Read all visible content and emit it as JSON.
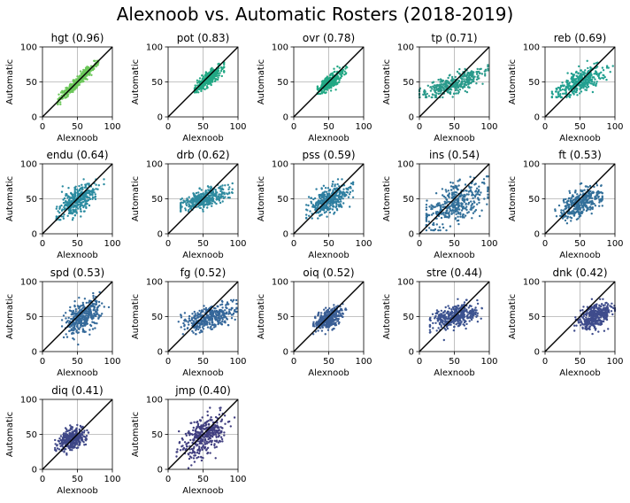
{
  "figure_title": "Alexnoob vs. Automatic Rosters (2018-2019)",
  "shared": {
    "xlabel": "Alexnoob",
    "ylabel": "Automatic",
    "xlim": [
      0,
      100
    ],
    "ylim": [
      0,
      100
    ],
    "ticks": [
      "0",
      "50",
      "100"
    ],
    "grid": true,
    "reference_line": "y = x",
    "layout": "4 rows x 5 columns"
  },
  "chart_data": [
    {
      "type": "scatter",
      "title": "hgt (0.96)",
      "color": "#6cc75a",
      "xlabel": "Alexnoob",
      "ylabel": "Automatic",
      "xlim": [
        0,
        100
      ],
      "ylim": [
        0,
        100
      ],
      "spread": {
        "x_mean": 50,
        "x_sd": 14,
        "x_range": [
          22,
          80
        ],
        "y_mean": 50,
        "y_sd": 14,
        "y_range": [
          18,
          80
        ],
        "correlation": 0.96
      }
    },
    {
      "type": "scatter",
      "title": "pot (0.83)",
      "color": "#22a884",
      "xlabel": "Alexnoob",
      "ylabel": "Automatic",
      "xlim": [
        0,
        100
      ],
      "ylim": [
        0,
        100
      ],
      "spread": {
        "x_mean": 58,
        "x_sd": 10,
        "x_range": [
          38,
          80
        ],
        "y_mean": 55,
        "y_sd": 9,
        "y_range": [
          35,
          78
        ],
        "correlation": 0.83
      }
    },
    {
      "type": "scatter",
      "title": "ovr (0.78)",
      "color": "#22a884",
      "xlabel": "Alexnoob",
      "ylabel": "Automatic",
      "xlim": [
        0,
        100
      ],
      "ylim": [
        0,
        100
      ],
      "spread": {
        "x_mean": 52,
        "x_sd": 9,
        "x_range": [
          34,
          78
        ],
        "y_mean": 50,
        "y_sd": 8,
        "y_range": [
          33,
          72
        ],
        "correlation": 0.78
      }
    },
    {
      "type": "scatter",
      "title": "tp (0.71)",
      "color": "#2a9a8b",
      "xlabel": "Alexnoob",
      "ylabel": "Automatic",
      "xlim": [
        0,
        100
      ],
      "ylim": [
        0,
        100
      ],
      "spread": {
        "x_mean": 50,
        "x_sd": 22,
        "x_range": [
          0,
          98
        ],
        "y_mean": 48,
        "y_sd": 10,
        "y_range": [
          28,
          75
        ],
        "correlation": 0.71
      }
    },
    {
      "type": "scatter",
      "title": "reb (0.69)",
      "color": "#22a090",
      "xlabel": "Alexnoob",
      "ylabel": "Automatic",
      "xlim": [
        0,
        100
      ],
      "ylim": [
        0,
        100
      ],
      "spread": {
        "x_mean": 50,
        "x_sd": 18,
        "x_range": [
          10,
          98
        ],
        "y_mean": 50,
        "y_sd": 11,
        "y_range": [
          28,
          80
        ],
        "correlation": 0.69
      }
    },
    {
      "type": "scatter",
      "title": "endu (0.64)",
      "color": "#2b8ba0",
      "xlabel": "Alexnoob",
      "ylabel": "Automatic",
      "xlim": [
        0,
        100
      ],
      "ylim": [
        0,
        100
      ],
      "spread": {
        "x_mean": 50,
        "x_sd": 14,
        "x_range": [
          20,
          88
        ],
        "y_mean": 48,
        "y_sd": 12,
        "y_range": [
          20,
          78
        ],
        "correlation": 0.64
      }
    },
    {
      "type": "scatter",
      "title": "drb (0.62)",
      "color": "#2e8a9f",
      "xlabel": "Alexnoob",
      "ylabel": "Automatic",
      "xlim": [
        0,
        100
      ],
      "ylim": [
        0,
        100
      ],
      "spread": {
        "x_mean": 52,
        "x_sd": 17,
        "x_range": [
          18,
          92
        ],
        "y_mean": 50,
        "y_sd": 8,
        "y_range": [
          32,
          72
        ],
        "correlation": 0.62
      }
    },
    {
      "type": "scatter",
      "title": "pss (0.59)",
      "color": "#2e7ea0",
      "xlabel": "Alexnoob",
      "ylabel": "Automatic",
      "xlim": [
        0,
        100
      ],
      "ylim": [
        0,
        100
      ],
      "spread": {
        "x_mean": 50,
        "x_sd": 15,
        "x_range": [
          18,
          85
        ],
        "y_mean": 48,
        "y_sd": 11,
        "y_range": [
          22,
          78
        ],
        "correlation": 0.59
      }
    },
    {
      "type": "scatter",
      "title": "ins (0.54)",
      "color": "#33709a",
      "xlabel": "Alexnoob",
      "ylabel": "Automatic",
      "xlim": [
        0,
        100
      ],
      "ylim": [
        0,
        100
      ],
      "spread": {
        "x_mean": 52,
        "x_sd": 22,
        "x_range": [
          10,
          98
        ],
        "y_mean": 42,
        "y_sd": 17,
        "y_range": [
          5,
          82
        ],
        "correlation": 0.54
      }
    },
    {
      "type": "scatter",
      "title": "ft (0.53)",
      "color": "#33709a",
      "xlabel": "Alexnoob",
      "ylabel": "Automatic",
      "xlim": [
        0,
        100
      ],
      "ylim": [
        0,
        100
      ],
      "spread": {
        "x_mean": 52,
        "x_sd": 15,
        "x_range": [
          10,
          82
        ],
        "y_mean": 45,
        "y_sd": 11,
        "y_range": [
          15,
          72
        ],
        "correlation": 0.53
      }
    },
    {
      "type": "scatter",
      "title": "spd (0.53)",
      "color": "#356a9a",
      "xlabel": "Alexnoob",
      "ylabel": "Automatic",
      "xlim": [
        0,
        100
      ],
      "ylim": [
        0,
        100
      ],
      "spread": {
        "x_mean": 58,
        "x_sd": 12,
        "x_range": [
          28,
          95
        ],
        "y_mean": 50,
        "y_sd": 12,
        "y_range": [
          10,
          85
        ],
        "correlation": 0.53
      }
    },
    {
      "type": "scatter",
      "title": "fg (0.52)",
      "color": "#35679a",
      "xlabel": "Alexnoob",
      "ylabel": "Automatic",
      "xlim": [
        0,
        100
      ],
      "ylim": [
        0,
        100
      ],
      "spread": {
        "x_mean": 58,
        "x_sd": 18,
        "x_range": [
          15,
          98
        ],
        "y_mean": 48,
        "y_sd": 10,
        "y_range": [
          25,
          85
        ],
        "correlation": 0.52
      }
    },
    {
      "type": "scatter",
      "title": "oiq (0.52)",
      "color": "#3a5e95",
      "xlabel": "Alexnoob",
      "ylabel": "Automatic",
      "xlim": [
        0,
        100
      ],
      "ylim": [
        0,
        100
      ],
      "spread": {
        "x_mean": 50,
        "x_sd": 10,
        "x_range": [
          28,
          75
        ],
        "y_mean": 47,
        "y_sd": 8,
        "y_range": [
          25,
          68
        ],
        "correlation": 0.52
      }
    },
    {
      "type": "scatter",
      "title": "stre (0.44)",
      "color": "#3c5390",
      "xlabel": "Alexnoob",
      "ylabel": "Automatic",
      "xlim": [
        0,
        100
      ],
      "ylim": [
        0,
        100
      ],
      "spread": {
        "x_mean": 50,
        "x_sd": 18,
        "x_range": [
          15,
          95
        ],
        "y_mean": 50,
        "y_sd": 9,
        "y_range": [
          12,
          75
        ],
        "correlation": 0.44
      }
    },
    {
      "type": "scatter",
      "title": "dnk (0.42)",
      "color": "#3f4c8c",
      "xlabel": "Alexnoob",
      "ylabel": "Automatic",
      "xlim": [
        0,
        100
      ],
      "ylim": [
        0,
        100
      ],
      "spread": {
        "x_mean": 72,
        "x_sd": 12,
        "x_range": [
          42,
          100
        ],
        "y_mean": 50,
        "y_sd": 9,
        "y_range": [
          20,
          75
        ],
        "correlation": 0.42
      }
    },
    {
      "type": "scatter",
      "title": "diq (0.41)",
      "color": "#3e4787",
      "xlabel": "Alexnoob",
      "ylabel": "Automatic",
      "xlim": [
        0,
        100
      ],
      "ylim": [
        0,
        100
      ],
      "spread": {
        "x_mean": 42,
        "x_sd": 10,
        "x_range": [
          18,
          70
        ],
        "y_mean": 43,
        "y_sd": 8,
        "y_range": [
          20,
          65
        ],
        "correlation": 0.41
      }
    },
    {
      "type": "scatter",
      "title": "jmp (0.40)",
      "color": "#413f80",
      "xlabel": "Alexnoob",
      "ylabel": "Automatic",
      "xlim": [
        0,
        100
      ],
      "ylim": [
        0,
        100
      ],
      "spread": {
        "x_mean": 50,
        "x_sd": 15,
        "x_range": [
          12,
          95
        ],
        "y_mean": 48,
        "y_sd": 15,
        "y_range": [
          0,
          88
        ],
        "correlation": 0.4
      }
    }
  ]
}
